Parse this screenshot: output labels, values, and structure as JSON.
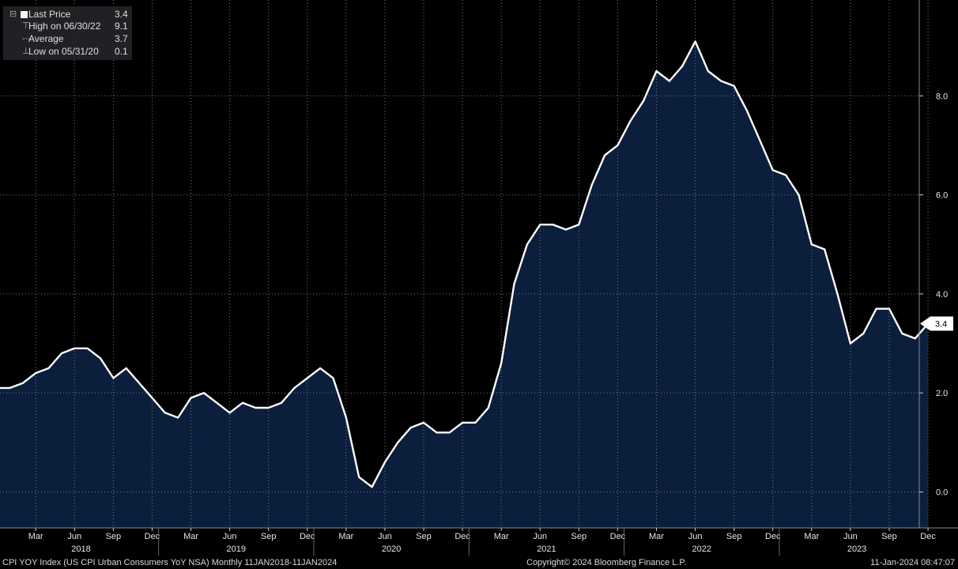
{
  "legend": {
    "rows": [
      {
        "label": "Last Price",
        "value": "3.4"
      },
      {
        "label": "High on 06/30/22",
        "value": "9.1"
      },
      {
        "label": "Average",
        "value": "3.7"
      },
      {
        "label": "Low on 05/31/20",
        "value": "0.1"
      }
    ]
  },
  "last_value_label": "3.4",
  "footer": {
    "left": "CPI YOY Index (US CPI Urban Consumers YoY NSA)  Monthly 11JAN2018-11JAN2024",
    "center": "Copyright© 2024 Bloomberg Finance L.P.",
    "right": "11-Jan-2024 08:47:07"
  },
  "colors": {
    "background": "#000000",
    "area_fill": "#0b1f3d",
    "line": "#ffffff",
    "grid": "#777777"
  },
  "chart_data": {
    "type": "area",
    "title": "",
    "xlabel": "",
    "ylabel": "",
    "ylim": [
      -0.8,
      9.9
    ],
    "y_ticks": [
      "0.0",
      "2.0",
      "4.0",
      "6.0",
      "8.0"
    ],
    "x_tick_labels": [
      "Mar",
      "Jun",
      "Sep",
      "Dec",
      "Mar",
      "Jun",
      "Sep",
      "Dec",
      "Mar",
      "Jun",
      "Sep",
      "Dec",
      "Mar",
      "Jun",
      "Sep",
      "Dec",
      "Mar",
      "Jun",
      "Sep",
      "Dec",
      "Mar",
      "Jun",
      "Sep",
      "Dec"
    ],
    "x_tick_months": [
      "2018-03",
      "2018-06",
      "2018-09",
      "2018-12",
      "2019-03",
      "2019-06",
      "2019-09",
      "2019-12",
      "2020-03",
      "2020-06",
      "2020-09",
      "2020-12",
      "2021-03",
      "2021-06",
      "2021-09",
      "2021-12",
      "2022-03",
      "2022-06",
      "2022-09",
      "2022-12",
      "2023-03",
      "2023-06",
      "2023-09",
      "2023-12"
    ],
    "year_labels": [
      "2018",
      "2019",
      "2020",
      "2021",
      "2022",
      "2023"
    ],
    "grid": true,
    "series": [
      {
        "x": [
          "2017-12",
          "2018-01",
          "2018-02",
          "2018-03",
          "2018-04",
          "2018-05",
          "2018-06",
          "2018-07",
          "2018-08",
          "2018-09",
          "2018-10",
          "2018-11",
          "2018-12",
          "2019-01",
          "2019-02",
          "2019-03",
          "2019-04",
          "2019-05",
          "2019-06",
          "2019-07",
          "2019-08",
          "2019-09",
          "2019-10",
          "2019-11",
          "2019-12",
          "2020-01",
          "2020-02",
          "2020-03",
          "2020-04",
          "2020-05",
          "2020-06",
          "2020-07",
          "2020-08",
          "2020-09",
          "2020-10",
          "2020-11",
          "2020-12",
          "2021-01",
          "2021-02",
          "2021-03",
          "2021-04",
          "2021-05",
          "2021-06",
          "2021-07",
          "2021-08",
          "2021-09",
          "2021-10",
          "2021-11",
          "2021-12",
          "2022-01",
          "2022-02",
          "2022-03",
          "2022-04",
          "2022-05",
          "2022-06",
          "2022-07",
          "2022-08",
          "2022-09",
          "2022-10",
          "2022-11",
          "2022-12",
          "2023-01",
          "2023-02",
          "2023-03",
          "2023-04",
          "2023-05",
          "2023-06",
          "2023-07",
          "2023-08",
          "2023-09",
          "2023-10",
          "2023-11",
          "2023-12"
        ],
        "values": [
          2.1,
          2.1,
          2.2,
          2.4,
          2.5,
          2.8,
          2.9,
          2.9,
          2.7,
          2.3,
          2.5,
          2.2,
          1.9,
          1.6,
          1.5,
          1.9,
          2.0,
          1.8,
          1.6,
          1.8,
          1.7,
          1.7,
          1.8,
          2.1,
          2.3,
          2.5,
          2.3,
          1.5,
          0.3,
          0.1,
          0.6,
          1.0,
          1.3,
          1.4,
          1.2,
          1.2,
          1.4,
          1.4,
          1.7,
          2.6,
          4.2,
          5.0,
          5.4,
          5.4,
          5.3,
          5.4,
          6.2,
          6.8,
          7.0,
          7.5,
          7.9,
          8.5,
          8.3,
          8.6,
          9.1,
          8.5,
          8.3,
          8.2,
          7.7,
          7.1,
          6.5,
          6.4,
          6.0,
          5.0,
          4.9,
          4.0,
          3.0,
          3.2,
          3.7,
          3.7,
          3.2,
          3.1,
          3.4
        ]
      }
    ]
  }
}
